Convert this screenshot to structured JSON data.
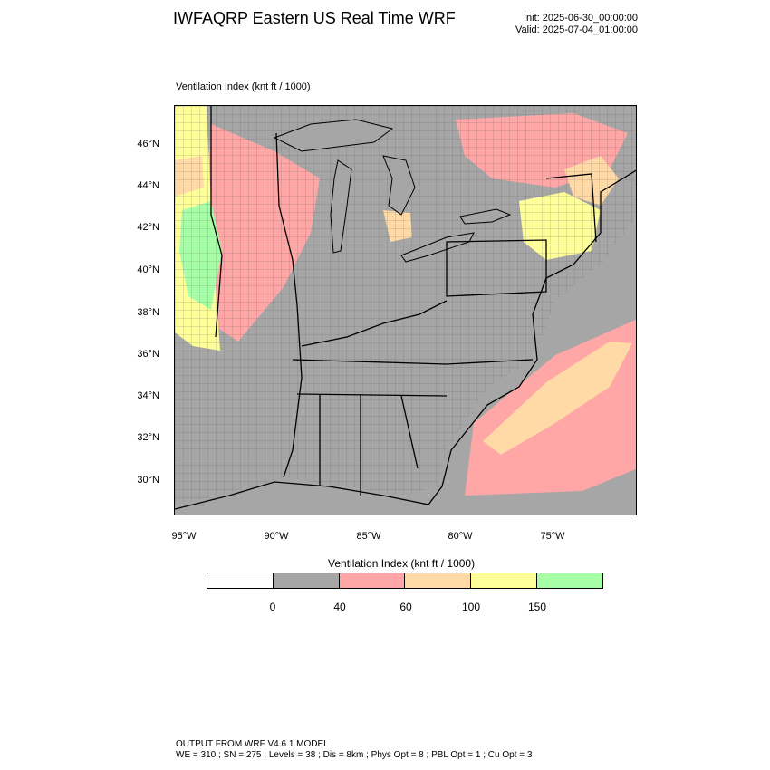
{
  "header": {
    "title": "IWFAQRP Eastern US Real Time WRF",
    "init": "Init: 2025-06-30_00:00:00",
    "valid": "Valid: 2025-07-04_01:00:00"
  },
  "map": {
    "field_title": "Ventilation Index   (knt ft / 1000)",
    "lat_labels": [
      "46°N",
      "44°N",
      "42°N",
      "40°N",
      "38°N",
      "36°N",
      "34°N",
      "32°N",
      "30°N"
    ],
    "lon_labels": [
      "95°W",
      "90°W",
      "85°W",
      "80°W",
      "75°W"
    ]
  },
  "colorbar": {
    "title": "Ventilation Index  (knt ft / 1000)",
    "colors": [
      "#ffffff",
      "#a6a6a6",
      "#ffa6a6",
      "#ffd9a6",
      "#ffff99",
      "#a6ffa6"
    ],
    "ticks": [
      "0",
      "40",
      "60",
      "100",
      "150"
    ]
  },
  "footer": {
    "line1": "OUTPUT FROM WRF V4.6.1 MODEL",
    "line2": "WE = 310 ; SN = 275 ; Levels = 38 ; Dis = 8km ; Phys Opt = 8 ; PBL Opt = 1 ; Cu Opt = 3"
  }
}
